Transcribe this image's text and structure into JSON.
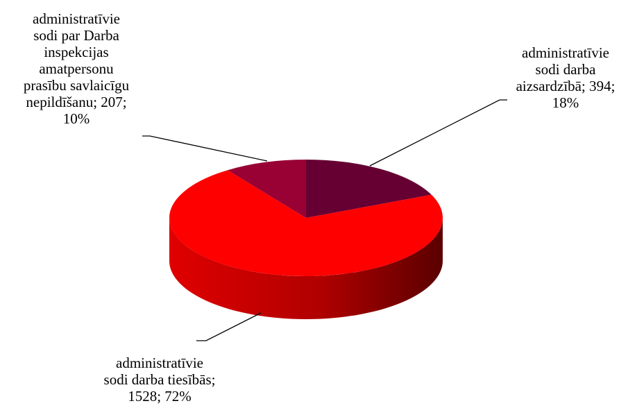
{
  "chart_data": {
    "type": "pie",
    "title": "",
    "legend": "none",
    "slices": [
      {
        "label": "administratīvie\nsodi darba\naizsardzībā; 394;\n18%",
        "value": 394,
        "percent": 18,
        "color": "#660033"
      },
      {
        "label": "administratīvie\nsodi darba tiesībās;\n1528; 72%",
        "value": 1528,
        "percent": 72,
        "color": "#ff0000"
      },
      {
        "label": "administratīvie\nsodi par Darba\ninspekcijas\namatpersonu\nprasību savlaicīgu\nnepildīšanu; 207;\n10%",
        "value": 207,
        "percent": 10,
        "color": "#990033"
      }
    ]
  }
}
